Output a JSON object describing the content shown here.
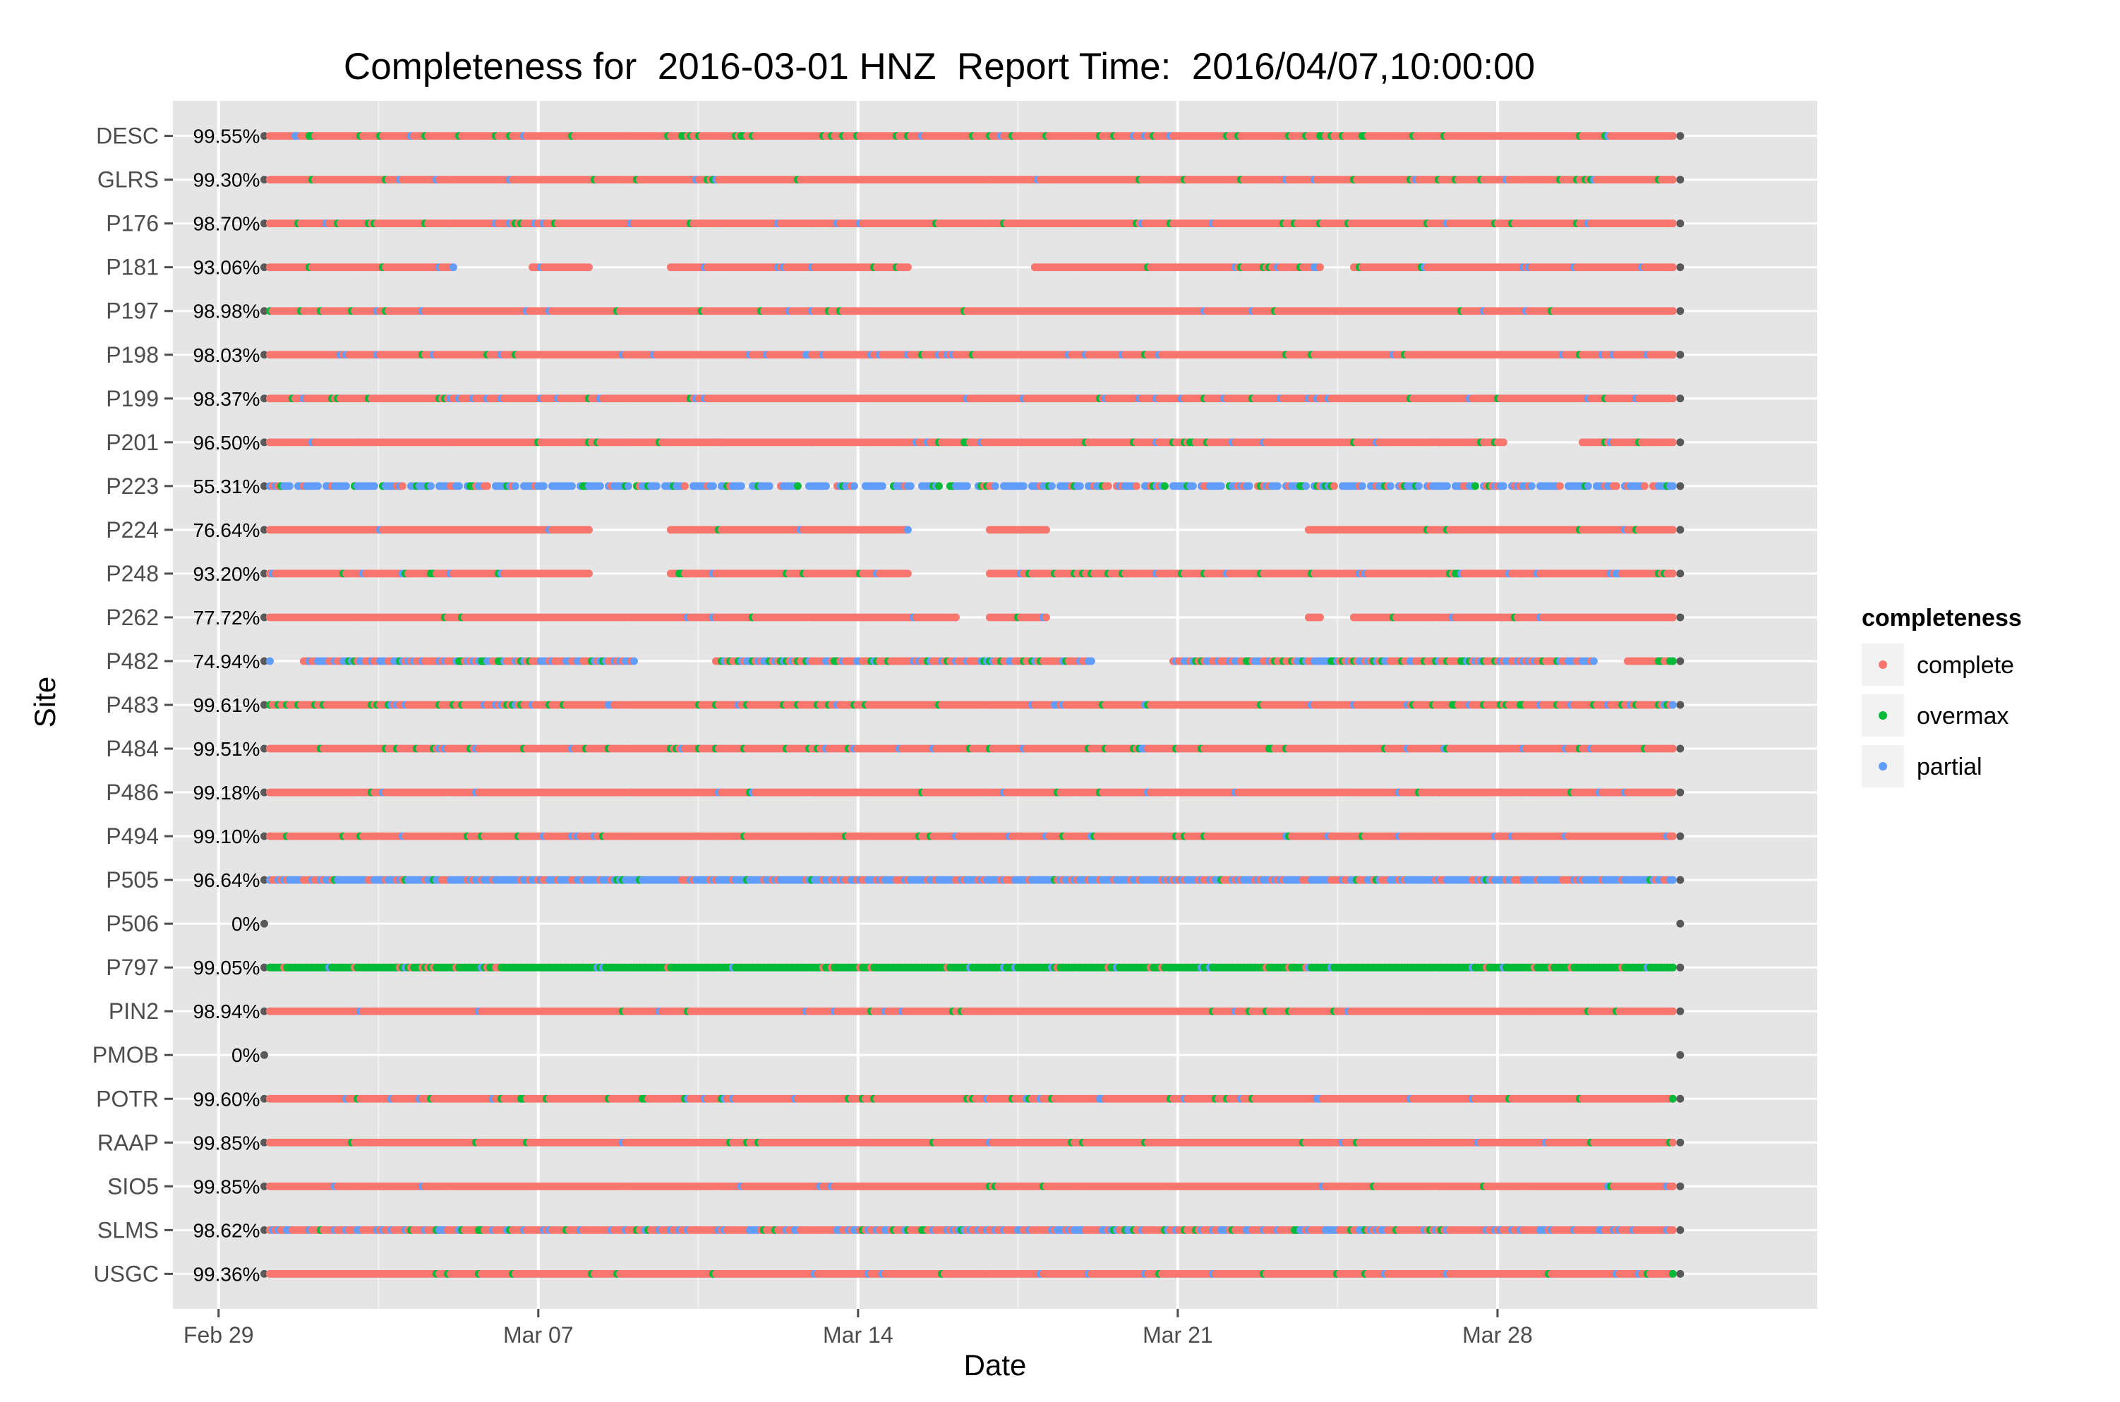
{
  "chart_data": {
    "type": "scatter",
    "title": "Completeness for  2016-03-01 HNZ  Report Time:  2016/04/07,10:00:00",
    "xlabel": "Date",
    "ylabel": "Site",
    "xlim": [
      "2016-02-28",
      "2016-04-04"
    ],
    "x_ticks": [
      "Feb 29",
      "Mar 07",
      "Mar 14",
      "Mar 21",
      "Mar 28"
    ],
    "x_tick_dates": [
      "2016-02-29",
      "2016-03-07",
      "2016-03-14",
      "2016-03-21",
      "2016-03-28"
    ],
    "data_start": "2016-03-01",
    "data_end": "2016-04-01",
    "grid": true,
    "legend": {
      "title": "completeness",
      "position": "right",
      "entries": [
        {
          "label": "complete",
          "color": "#F8766D"
        },
        {
          "label": "overmax",
          "color": "#00BA38"
        },
        {
          "label": "partial",
          "color": "#619CFF"
        }
      ]
    },
    "colors": {
      "complete": "#F8766D",
      "overmax": "#00BA38",
      "partial": "#619CFF",
      "endpoint": "#595959",
      "panel": "#E5E5E5",
      "grid": "#FFFFFF"
    },
    "sites": [
      {
        "name": "USGC",
        "percent": "99.36%",
        "base": "complete",
        "gaps": [],
        "sprinkle": [
          [
            "overmax",
            0.03
          ],
          [
            "partial",
            0.02
          ]
        ]
      },
      {
        "name": "SLMS",
        "percent": "98.62%",
        "base": "complete",
        "gaps": [],
        "sprinkle": [
          [
            "partial",
            0.25
          ],
          [
            "overmax",
            0.06
          ]
        ]
      },
      {
        "name": "SIO5",
        "percent": "99.85%",
        "base": "complete",
        "gaps": [],
        "sprinkle": [
          [
            "partial",
            0.01
          ],
          [
            "overmax",
            0.01
          ]
        ]
      },
      {
        "name": "RAAP",
        "percent": "99.85%",
        "base": "complete",
        "gaps": [],
        "sprinkle": [
          [
            "overmax",
            0.02
          ],
          [
            "partial",
            0.01
          ]
        ]
      },
      {
        "name": "POTR",
        "percent": "99.60%",
        "base": "complete",
        "gaps": [],
        "sprinkle": [
          [
            "overmax",
            0.06
          ],
          [
            "partial",
            0.03
          ]
        ]
      },
      {
        "name": "PMOB",
        "percent": "0%",
        "base": "none",
        "gaps": [],
        "sprinkle": []
      },
      {
        "name": "PIN2",
        "percent": "98.94%",
        "base": "complete",
        "gaps": [],
        "sprinkle": [
          [
            "overmax",
            0.02
          ],
          [
            "partial",
            0.02
          ]
        ]
      },
      {
        "name": "P797",
        "percent": "99.05%",
        "base": "overmax",
        "gaps": [],
        "sprinkle": [
          [
            "complete",
            0.06
          ],
          [
            "partial",
            0.04
          ]
        ]
      },
      {
        "name": "P506",
        "percent": "0%",
        "base": "none",
        "gaps": [],
        "sprinkle": []
      },
      {
        "name": "P505",
        "percent": "96.64%",
        "base": "partial",
        "gaps": [],
        "sprinkle": [
          [
            "complete",
            0.25
          ],
          [
            "overmax",
            0.04
          ]
        ]
      },
      {
        "name": "P494",
        "percent": "99.10%",
        "base": "complete",
        "gaps": [],
        "sprinkle": [
          [
            "overmax",
            0.03
          ],
          [
            "partial",
            0.02
          ]
        ]
      },
      {
        "name": "P486",
        "percent": "99.18%",
        "base": "complete",
        "gaps": [],
        "sprinkle": [
          [
            "partial",
            0.02
          ],
          [
            "overmax",
            0.01
          ]
        ]
      },
      {
        "name": "P484",
        "percent": "99.51%",
        "base": "complete",
        "gaps": [],
        "sprinkle": [
          [
            "overmax",
            0.05
          ],
          [
            "partial",
            0.04
          ]
        ]
      },
      {
        "name": "P483",
        "percent": "99.61%",
        "base": "complete",
        "gaps": [],
        "sprinkle": [
          [
            "overmax",
            0.08
          ],
          [
            "partial",
            0.05
          ]
        ]
      },
      {
        "name": "P482",
        "percent": "74.94%",
        "base": "complete",
        "gaps": [
          [
            "2016-03-01",
            "2016-03-01"
          ],
          [
            "2016-03-09",
            "2016-03-10"
          ],
          [
            "2016-03-19",
            "2016-03-20"
          ],
          [
            "2016-03-30",
            "2016-03-30"
          ]
        ],
        "sprinkle": [
          [
            "partial",
            0.3
          ],
          [
            "overmax",
            0.15
          ]
        ]
      },
      {
        "name": "P262",
        "percent": "77.72%",
        "base": "complete",
        "gaps": [
          [
            "2016-03-16",
            "2016-03-16"
          ],
          [
            "2016-03-18",
            "2016-03-23"
          ],
          [
            "2016-03-24",
            "2016-03-24"
          ]
        ],
        "sprinkle": [
          [
            "partial",
            0.02
          ],
          [
            "overmax",
            0.01
          ]
        ]
      },
      {
        "name": "P248",
        "percent": "93.20%",
        "base": "complete",
        "gaps": [
          [
            "2016-03-08",
            "2016-03-09"
          ],
          [
            "2016-03-15",
            "2016-03-16"
          ]
        ],
        "sprinkle": [
          [
            "overmax",
            0.06
          ],
          [
            "partial",
            0.04
          ]
        ]
      },
      {
        "name": "P224",
        "percent": "76.64%",
        "base": "complete",
        "gaps": [
          [
            "2016-03-08",
            "2016-03-09"
          ],
          [
            "2016-03-15",
            "2016-03-16"
          ],
          [
            "2016-03-18",
            "2016-03-23"
          ]
        ],
        "sprinkle": [
          [
            "partial",
            0.02
          ],
          [
            "overmax",
            0.01
          ]
        ]
      },
      {
        "name": "P223",
        "percent": "55.31%",
        "base": "partial",
        "gaps": [],
        "sprinkle": [
          [
            "complete",
            0.18
          ],
          [
            "overmax",
            0.1
          ]
        ]
      },
      {
        "name": "P201",
        "percent": "96.50%",
        "base": "complete",
        "gaps": [
          [
            "2016-03-28",
            "2016-03-29"
          ]
        ],
        "sprinkle": [
          [
            "overmax",
            0.03
          ],
          [
            "partial",
            0.02
          ]
        ]
      },
      {
        "name": "P199",
        "percent": "98.37%",
        "base": "complete",
        "gaps": [],
        "sprinkle": [
          [
            "partial",
            0.04
          ],
          [
            "overmax",
            0.02
          ]
        ]
      },
      {
        "name": "P198",
        "percent": "98.03%",
        "base": "complete",
        "gaps": [],
        "sprinkle": [
          [
            "partial",
            0.04
          ],
          [
            "overmax",
            0.02
          ]
        ]
      },
      {
        "name": "P197",
        "percent": "98.98%",
        "base": "complete",
        "gaps": [],
        "sprinkle": [
          [
            "overmax",
            0.03
          ],
          [
            "partial",
            0.02
          ]
        ]
      },
      {
        "name": "P181",
        "percent": "93.06%",
        "base": "complete",
        "gaps": [
          [
            "2016-03-05",
            "2016-03-06"
          ],
          [
            "2016-03-08",
            "2016-03-09"
          ],
          [
            "2016-03-15",
            "2016-03-16"
          ],
          [
            "2016-03-16",
            "2016-03-17"
          ],
          [
            "2016-03-24",
            "2016-03-24"
          ]
        ],
        "sprinkle": [
          [
            "partial",
            0.04
          ],
          [
            "overmax",
            0.02
          ]
        ]
      },
      {
        "name": "P176",
        "percent": "98.70%",
        "base": "complete",
        "gaps": [],
        "sprinkle": [
          [
            "overmax",
            0.03
          ],
          [
            "partial",
            0.03
          ]
        ]
      },
      {
        "name": "GLRS",
        "percent": "99.30%",
        "base": "complete",
        "gaps": [],
        "sprinkle": [
          [
            "overmax",
            0.03
          ],
          [
            "partial",
            0.02
          ]
        ]
      },
      {
        "name": "DESC",
        "percent": "99.55%",
        "base": "complete",
        "gaps": [],
        "sprinkle": [
          [
            "overmax",
            0.08
          ],
          [
            "partial",
            0.03
          ]
        ]
      }
    ]
  }
}
